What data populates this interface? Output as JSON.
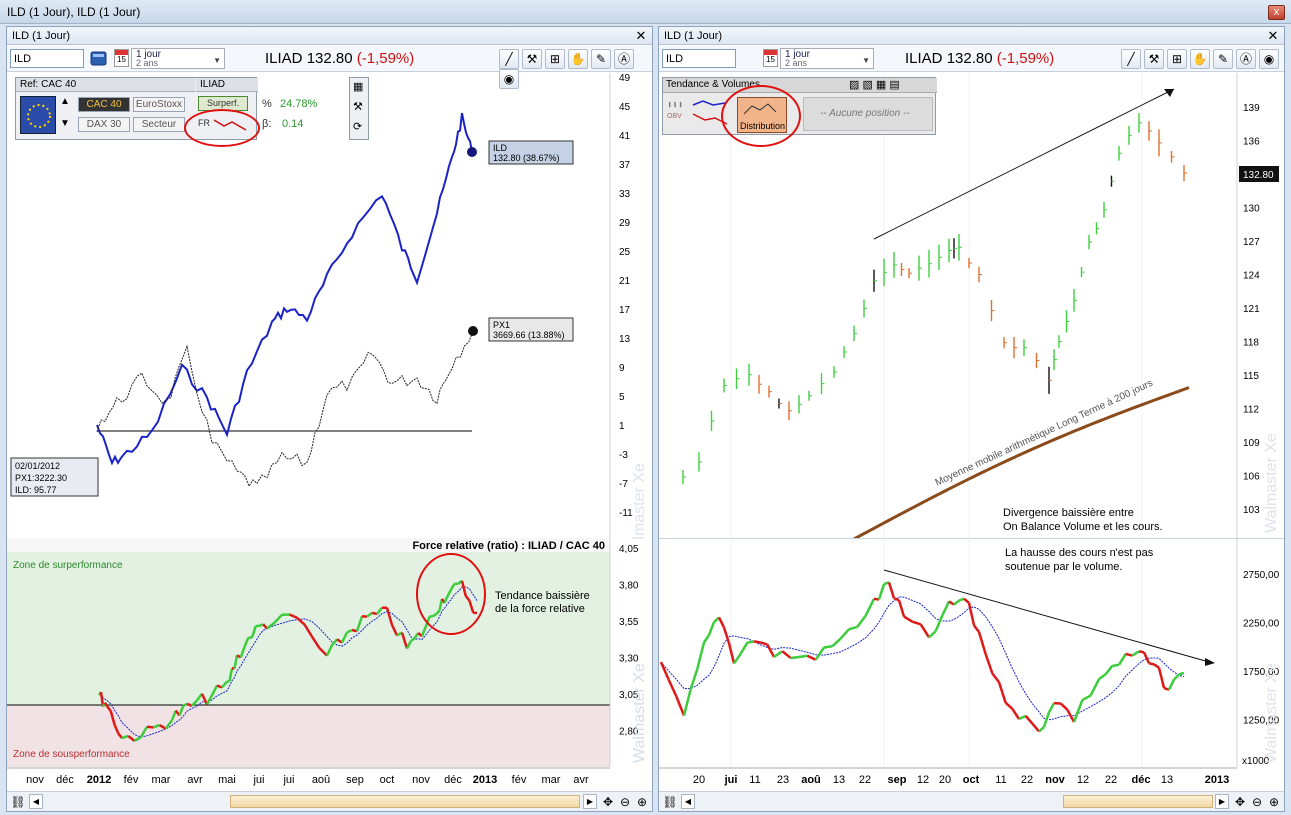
{
  "window": {
    "title": "ILD (1 Jour), ILD (1 Jour)",
    "close": "x"
  },
  "left_pane": {
    "title": "ILD (1 Jour)",
    "symbol": "ILD",
    "period_main": "1 jour",
    "period_sub": "2 ans",
    "cal_day": "15",
    "name": "ILIAD",
    "price": "132.80",
    "change": "(-1,59%)",
    "ref_panel": {
      "ref_label": "Ref: CAC 40",
      "iliad_label": "ILIAD",
      "btn_cac40": "CAC 40",
      "btn_eurostoxx": "EuroStoxx",
      "btn_dax30": "DAX 30",
      "btn_secteur": "Secteur",
      "btn_surperf": "Surperf.",
      "fr_label": "FR",
      "pct_symbol": "%",
      "pct_value": "24.78%",
      "beta_symbol": "β:",
      "beta_value": "0.14"
    },
    "ild_tag": {
      "name": "ILD",
      "value": "132.80 (38.67%)"
    },
    "px1_tag": {
      "name": "PX1",
      "value": "3669.66 (13.88%)"
    },
    "start_info": {
      "date": "02/01/2012",
      "px1": "PX1:3222.30",
      "ild": "ILD: 95.77"
    },
    "y_ticks": [
      "49",
      "45",
      "41",
      "37",
      "33",
      "29",
      "25",
      "21",
      "17",
      "13",
      "9",
      "5",
      "1",
      "-3",
      "-7",
      "-11"
    ],
    "rs_title": "Force relative (ratio) : ILIAD / CAC 40",
    "rs_ticks": [
      "4,05",
      "3,80",
      "3,55",
      "3,30",
      "3,05",
      "2,80"
    ],
    "zone_sur": "Zone de surperformance",
    "zone_sous": "Zone de sousperformance",
    "rs_note_1": "Tendance baissière",
    "rs_note_2": "de la force relative",
    "x_labels": [
      "nov",
      "déc",
      "2012",
      "fév",
      "mar",
      "avr",
      "mai",
      "jui",
      "jui",
      "aoû",
      "sep",
      "oct",
      "nov",
      "déc",
      "2013",
      "fév",
      "mar",
      "avr"
    ],
    "watermark": "Walmaster Xe"
  },
  "right_pane": {
    "title": "ILD (1 Jour)",
    "symbol": "ILD",
    "period_main": "1 jour",
    "period_sub": "2 ans",
    "cal_day": "15",
    "name": "ILIAD",
    "price": "132.80",
    "change": "(-1,59%)",
    "tv_panel": {
      "title": "Tendance & Volumes",
      "distribution": "Distribution",
      "position": "-- Aucune position --",
      "obv": "OBV"
    },
    "y_ticks": [
      "139",
      "136",
      "133",
      "130",
      "127",
      "124",
      "121",
      "118",
      "115",
      "112",
      "109",
      "106",
      "103"
    ],
    "price_tag": "132.80",
    "ma_label": "Moyenne mobile arithmétique Long Terme à 200 jours",
    "div_note_1": "Divergence baissière entre",
    "div_note_2": "On Balance Volume et les cours.",
    "vol_note_1": "La hausse des cours  n'est pas",
    "vol_note_2": "soutenue par le volume.",
    "obv_ticks": [
      "2750,00",
      "2250,00",
      "1750,00",
      "1250,00"
    ],
    "obv_unit": "x1000",
    "x_labels": [
      "20",
      "jui",
      "11",
      "23",
      "aoû",
      "13",
      "22",
      "sep",
      "12",
      "20",
      "oct",
      "11",
      "22",
      "nov",
      "12",
      "22",
      "déc",
      "13",
      "2013"
    ],
    "watermark": "Walmaster Xe"
  },
  "chart_data": [
    {
      "type": "line",
      "title": "",
      "series": [
        {
          "name": "ILD",
          "last": 38.67
        },
        {
          "name": "PX1",
          "last": 13.88
        }
      ],
      "ylim": [
        -11,
        49
      ]
    },
    {
      "type": "line",
      "title": "Force relative (ratio) : ILIAD / CAC 40",
      "ylim": [
        2.8,
        4.05
      ],
      "reference": 2.95
    },
    {
      "type": "bar",
      "title": "",
      "ylim": [
        103,
        139
      ],
      "last": 132.8
    },
    {
      "type": "line",
      "title": "",
      "ylim": [
        1250,
        2750
      ],
      "unit": "x1000"
    }
  ],
  "colors": {
    "ild_line": "#1a23c8",
    "px1_line": "#222222",
    "up": "#3fd03f",
    "down": "#e07030",
    "obv_up": "#3ccc3c",
    "obv_down": "#e01818",
    "ma": "#8a4a1a",
    "annot": "#e01010"
  }
}
